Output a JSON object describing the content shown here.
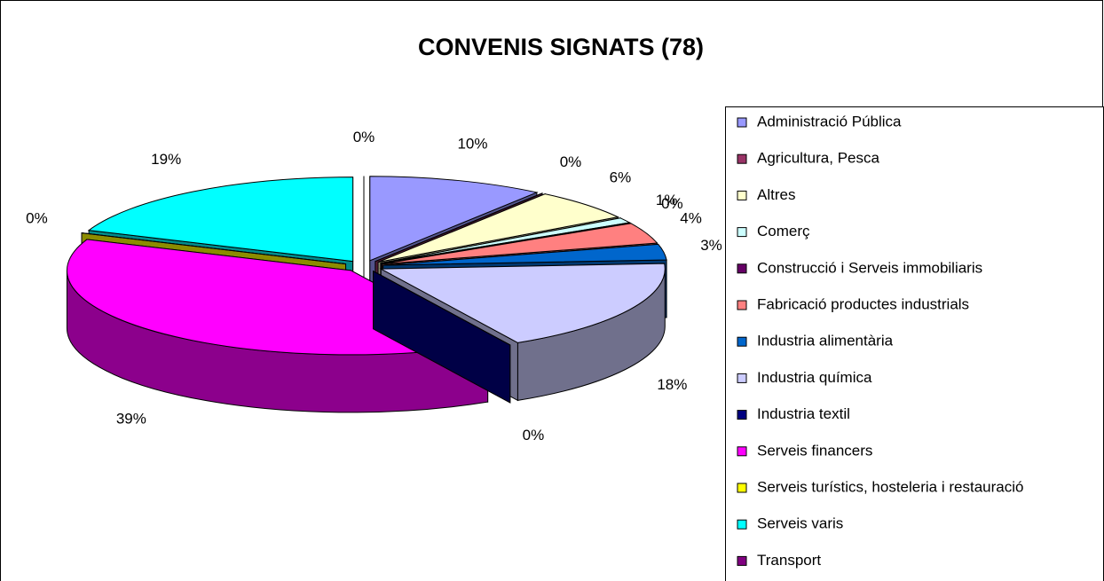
{
  "chart_data": {
    "type": "pie3d",
    "title": "CONVENIS SIGNATS (78)",
    "categories": [
      "Administració Pública",
      "Agricultura, Pesca",
      "Altres",
      "Comerç",
      "Construcció i Serveis immobiliaris",
      "Fabricació productes industrials",
      "Industria alimentària",
      "Industria química",
      "Industria textil",
      "Serveis financers",
      "Serveis turístics, hosteleria i restauració",
      "Serveis varis",
      "Transport"
    ],
    "values": [
      10,
      0,
      6,
      1,
      0,
      4,
      3,
      18,
      0,
      39,
      0,
      19,
      0
    ],
    "value_labels": [
      "10%",
      "0%",
      "6%",
      "1%",
      "0%",
      "4%",
      "3%",
      "18%",
      "0%",
      "39%",
      "0%",
      "19%",
      "0%"
    ],
    "colors": [
      "#9999ff",
      "#993366",
      "#ffffcc",
      "#ccffff",
      "#660066",
      "#ff8080",
      "#0066cc",
      "#ccccff",
      "#000080",
      "#ff00ff",
      "#ffff00",
      "#00ffff",
      "#800080"
    ],
    "legend": "right"
  }
}
